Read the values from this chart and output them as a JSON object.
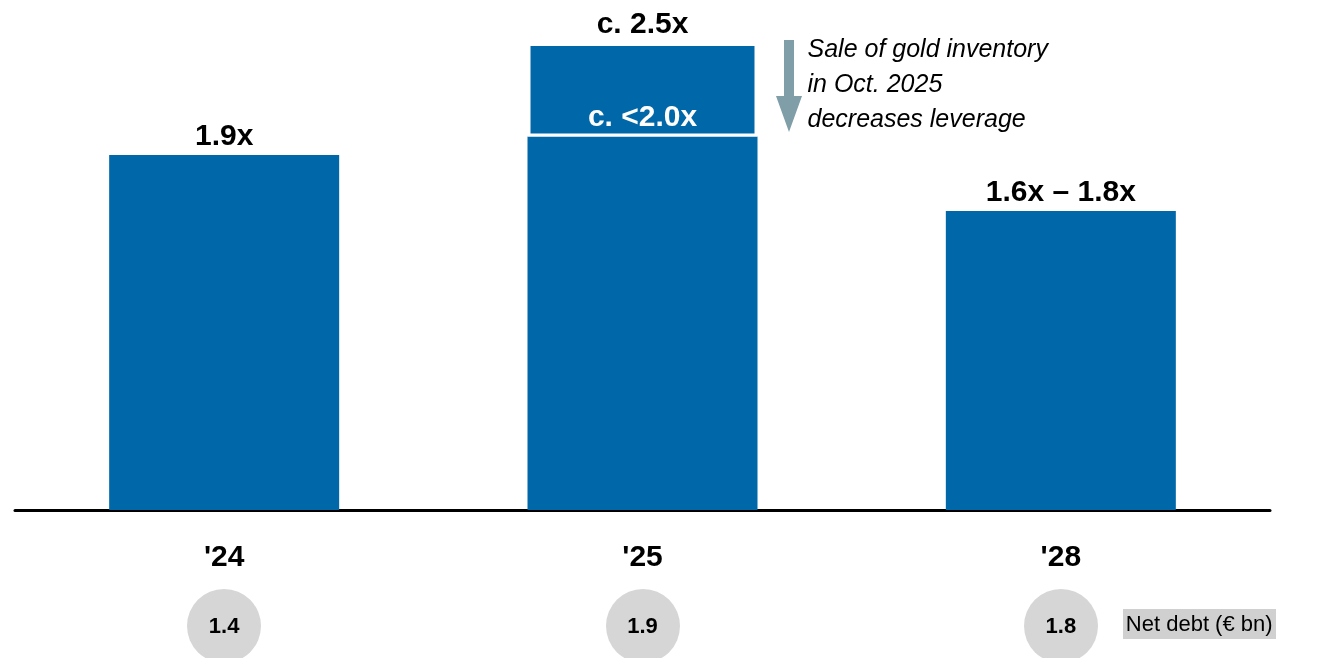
{
  "chart_data": {
    "type": "bar",
    "stacked": true,
    "categories": [
      "'24",
      "'25",
      "'28"
    ],
    "series": [
      {
        "color": "#0067a8",
        "values": [
          1.9,
          2.0,
          1.6
        ],
        "value_labels": [
          "1.9x",
          "c. <2.0x",
          "1.6x – 1.8x"
        ]
      },
      {
        "color": "#0067a8",
        "values": [
          null,
          0.5,
          null
        ]
      }
    ],
    "totals": [
      null,
      "c. 2.5x",
      null
    ],
    "annotations": [
      "Sale of gold inventory\nin Oct. 2025\ndecreases leverage",
      "Net debt (€ bn)",
      "1.4",
      "1.9",
      "1.8"
    ],
    "grid": false
  }
}
